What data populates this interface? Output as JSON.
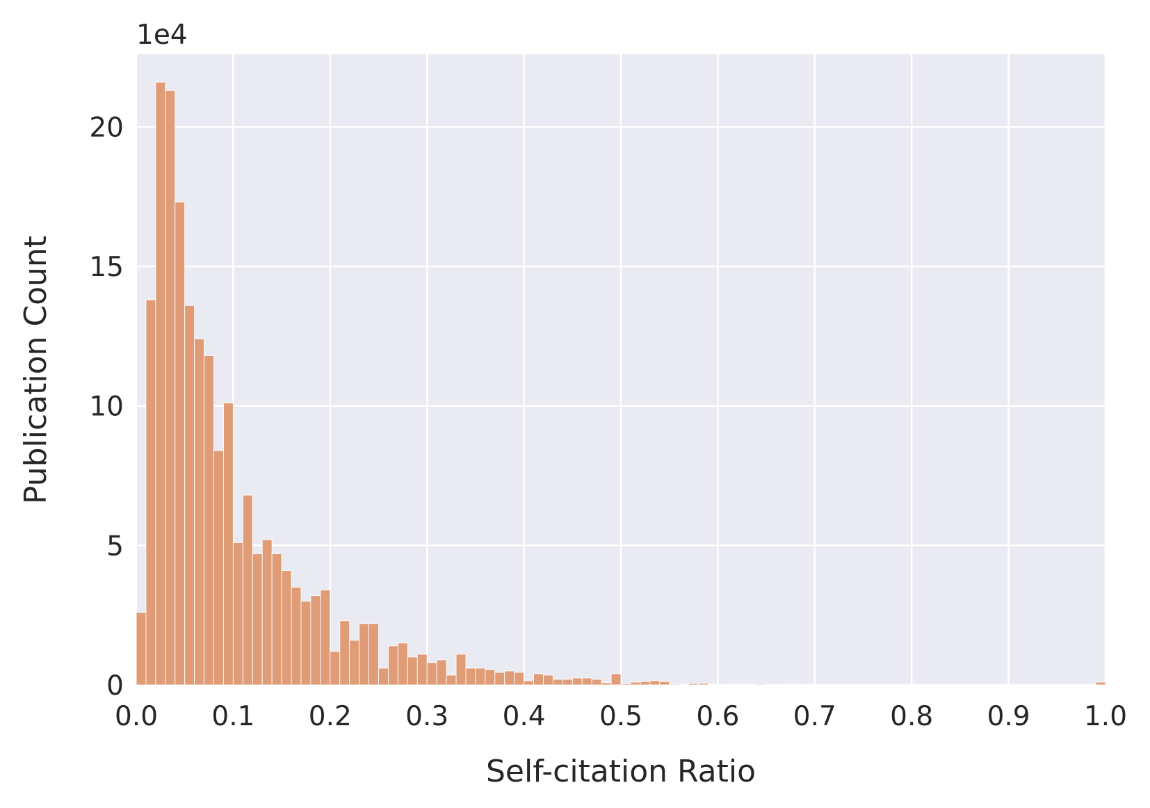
{
  "chart_data": {
    "type": "bar",
    "subtype": "histogram",
    "title": "",
    "xlabel": "Self-citation Ratio",
    "ylabel": "Publication Count",
    "y_offset_label": "1e4",
    "xlim": [
      0.0,
      1.0
    ],
    "ylim": [
      0,
      22.6
    ],
    "x_ticks": [
      0.0,
      0.1,
      0.2,
      0.3,
      0.4,
      0.5,
      0.6,
      0.7,
      0.8,
      0.9,
      1.0
    ],
    "x_tick_labels": [
      "0.0",
      "0.1",
      "0.2",
      "0.3",
      "0.4",
      "0.5",
      "0.6",
      "0.7",
      "0.8",
      "0.9",
      "1.0"
    ],
    "y_ticks": [
      0,
      5,
      10,
      15,
      20
    ],
    "y_tick_labels": [
      "0",
      "5",
      "10",
      "15",
      "20"
    ],
    "grid": true,
    "legend": "none",
    "bin_width": 0.01,
    "bin_starts": [
      0.0,
      0.01,
      0.02,
      0.03,
      0.04,
      0.05,
      0.06,
      0.07,
      0.08,
      0.09,
      0.1,
      0.11,
      0.12,
      0.13,
      0.14,
      0.15,
      0.16,
      0.17,
      0.18,
      0.19,
      0.2,
      0.21,
      0.22,
      0.23,
      0.24,
      0.25,
      0.26,
      0.27,
      0.28,
      0.29,
      0.3,
      0.31,
      0.32,
      0.33,
      0.34,
      0.35,
      0.36,
      0.37,
      0.38,
      0.39,
      0.4,
      0.41,
      0.42,
      0.43,
      0.44,
      0.45,
      0.46,
      0.47,
      0.48,
      0.49,
      0.5,
      0.51,
      0.52,
      0.53,
      0.54,
      0.55,
      0.56,
      0.57,
      0.58,
      0.59,
      0.6,
      0.61,
      0.62,
      0.63,
      0.64,
      0.65,
      0.66,
      0.67,
      0.68,
      0.69,
      0.99
    ],
    "values": [
      2.6,
      13.8,
      21.6,
      21.3,
      17.3,
      13.6,
      12.4,
      11.8,
      8.4,
      10.1,
      5.1,
      6.8,
      4.7,
      5.2,
      4.7,
      4.1,
      3.5,
      3.0,
      3.2,
      3.4,
      1.2,
      2.3,
      1.6,
      2.2,
      2.2,
      0.6,
      1.4,
      1.5,
      1.0,
      1.1,
      0.8,
      0.9,
      0.35,
      1.1,
      0.6,
      0.6,
      0.55,
      0.45,
      0.5,
      0.45,
      0.15,
      0.4,
      0.35,
      0.2,
      0.2,
      0.25,
      0.25,
      0.2,
      0.08,
      0.4,
      0.04,
      0.1,
      0.12,
      0.15,
      0.12,
      0.03,
      0.02,
      0.05,
      0.06,
      0.02,
      0.01,
      0.02,
      0.02,
      0.01,
      0.03,
      0.0,
      0.0,
      0.02,
      0.0,
      0.0,
      0.1
    ],
    "colors": {
      "bar_fill": "#e09c76",
      "bar_stroke": "#ffffff",
      "plot_background": "#eaeaf2",
      "grid": "#ffffff",
      "text": "#262626"
    }
  }
}
